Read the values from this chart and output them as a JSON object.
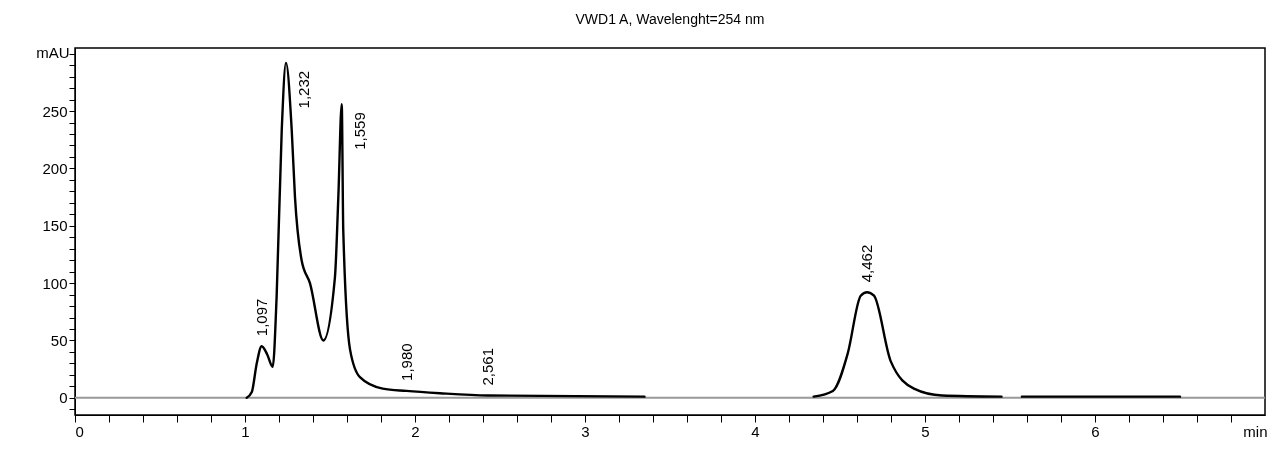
{
  "chart_data": {
    "type": "line",
    "title": "VWD1 A, Wavelenght=254 nm",
    "xlabel": "min",
    "ylabel": "mAU",
    "x": [
      1.01,
      1.04,
      1.069,
      1.098,
      1.13,
      1.163,
      1.186,
      1.216,
      1.241,
      1.275,
      1.294,
      1.333,
      1.382,
      1.461,
      1.529,
      1.549,
      1.569,
      1.578,
      1.618,
      1.676,
      1.81,
      1.95,
      2.147,
      2.43,
      3.35,
      3.4,
      4.345,
      4.458,
      4.546,
      4.622,
      4.659,
      4.7,
      4.798,
      4.935,
      5.1,
      5.45,
      5.5,
      5.57,
      6.5
    ],
    "series": [
      {
        "color": "#000000",
        "values": [
          0,
          5,
          30,
          45,
          38,
          27,
          88,
          233,
          292,
          233,
          175,
          120,
          100,
          50,
          105,
          175,
          256,
          146,
          42,
          18,
          8,
          6,
          4,
          2,
          1,
          null,
          1,
          6,
          39,
          89,
          92,
          89,
          32,
          8,
          2,
          1,
          null,
          1,
          1
        ]
      }
    ],
    "xlim": [
      0,
      7
    ],
    "xticks": [
      0,
      {
        "value": 0.2,
        "label": null
      },
      {
        "value": 0.4,
        "label": null
      },
      {
        "value": 0.6,
        "label": null
      },
      {
        "value": 0.8,
        "label": null
      },
      1,
      {
        "value": 1.2,
        "label": null
      },
      {
        "value": 1.4,
        "label": null
      },
      {
        "value": 1.6,
        "label": null
      },
      {
        "value": 1.8,
        "label": null
      },
      2,
      {
        "value": 2.2,
        "label": null
      },
      {
        "value": 2.4,
        "label": null
      },
      {
        "value": 2.6,
        "label": null
      },
      {
        "value": 2.8,
        "label": null
      },
      3,
      {
        "value": 3.2,
        "label": null
      },
      {
        "value": 3.4,
        "label": null
      },
      {
        "value": 3.6,
        "label": null
      },
      {
        "value": 3.8,
        "label": null
      },
      4,
      {
        "value": 4.2,
        "label": null
      },
      {
        "value": 4.4,
        "label": null
      },
      {
        "value": 4.6,
        "label": null
      },
      {
        "value": 4.8,
        "label": null
      },
      5,
      {
        "value": 5.2,
        "label": null
      },
      {
        "value": 5.4,
        "label": null
      },
      {
        "value": 5.6,
        "label": null
      },
      {
        "value": 5.8,
        "label": null
      },
      6,
      {
        "value": 6.2,
        "label": null
      },
      {
        "value": 6.4,
        "label": null
      },
      {
        "value": 6.6,
        "label": null
      },
      {
        "value": 6.8,
        "label": null
      }
    ],
    "ylim": [
      -15,
      305
    ],
    "yticks": [
      {
        "value": -10,
        "label": null
      },
      0,
      {
        "value": 10,
        "label": null
      },
      {
        "value": 20,
        "label": null
      },
      {
        "value": 30,
        "label": null
      },
      {
        "value": 40,
        "label": null
      },
      50,
      {
        "value": 60,
        "label": null
      },
      {
        "value": 70,
        "label": null
      },
      {
        "value": 80,
        "label": null
      },
      {
        "value": 90,
        "label": null
      },
      100,
      {
        "value": 110,
        "label": null
      },
      {
        "value": 120,
        "label": null
      },
      {
        "value": 130,
        "label": null
      },
      {
        "value": 140,
        "label": null
      },
      150,
      {
        "value": 160,
        "label": null
      },
      {
        "value": 170,
        "label": null
      },
      {
        "value": 180,
        "label": null
      },
      {
        "value": 190,
        "label": null
      },
      200,
      {
        "value": 210,
        "label": null
      },
      {
        "value": 220,
        "label": null
      },
      {
        "value": 230,
        "label": null
      },
      {
        "value": 240,
        "label": null
      },
      250,
      {
        "value": 260,
        "label": null
      },
      {
        "value": 270,
        "label": null
      },
      {
        "value": 280,
        "label": null
      },
      {
        "value": 290,
        "label": null
      },
      {
        "value": 300,
        "label": null
      }
    ],
    "ref_lines": [
      {
        "axis": "y",
        "value": 0,
        "label": null,
        "color": "#999999"
      }
    ],
    "annotations": [
      {
        "text": "1,097",
        "x": 1.098,
        "y": 45
      },
      {
        "text": "1,232",
        "x": 1.241,
        "y": 292
      },
      {
        "text": "1,559",
        "x": 1.569,
        "y": 256
      },
      {
        "text": "1,980",
        "x": 1.95,
        "y": 6
      },
      {
        "text": "2,561",
        "x": 2.43,
        "y": 2
      },
      {
        "text": "4,462",
        "x": 4.659,
        "y": 92
      }
    ],
    "line_style": "solid"
  }
}
